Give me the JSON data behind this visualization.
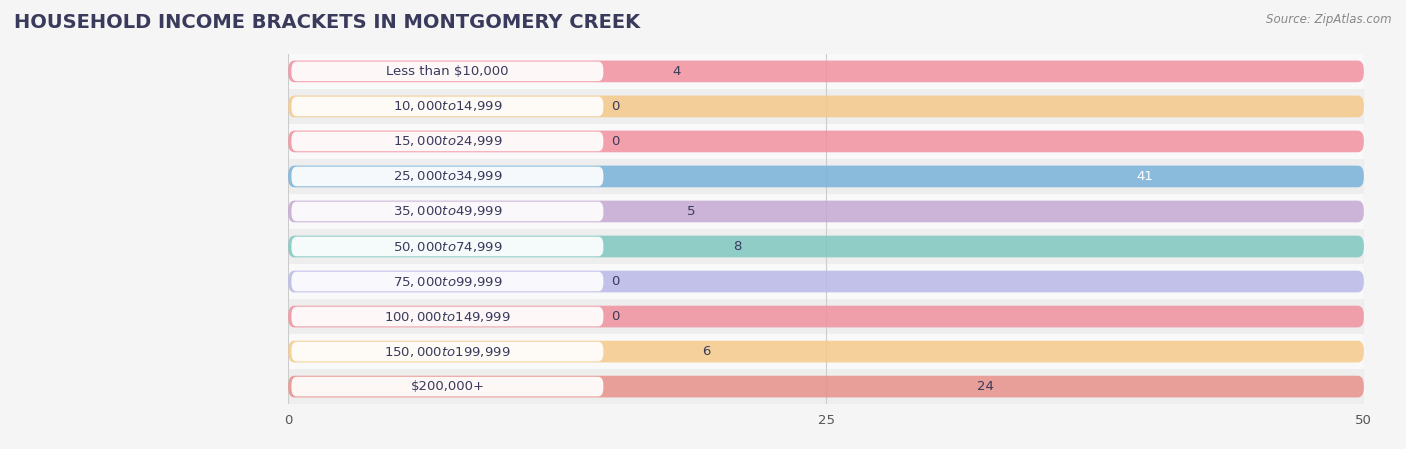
{
  "title": "HOUSEHOLD INCOME BRACKETS IN MONTGOMERY CREEK",
  "source": "Source: ZipAtlas.com",
  "categories": [
    "Less than $10,000",
    "$10,000 to $14,999",
    "$15,000 to $24,999",
    "$25,000 to $34,999",
    "$35,000 to $49,999",
    "$50,000 to $74,999",
    "$75,000 to $99,999",
    "$100,000 to $149,999",
    "$150,000 to $199,999",
    "$200,000+"
  ],
  "values": [
    4,
    0,
    0,
    41,
    5,
    8,
    0,
    0,
    6,
    24
  ],
  "bar_colors": [
    "#f0919f",
    "#f5c98a",
    "#f0919f",
    "#7ab3d9",
    "#c3a8d1",
    "#7ec8c0",
    "#b8b8e8",
    "#f0919f",
    "#f5c98a",
    "#e8908a"
  ],
  "xlim": [
    0,
    50
  ],
  "xticks": [
    0,
    25,
    50
  ],
  "bar_height": 0.62,
  "background_color": "#f5f5f5",
  "row_bg_colors": [
    "#f9f9f9",
    "#eeeeee"
  ],
  "label_fontsize": 9.5,
  "value_fontsize": 9.5,
  "title_fontsize": 14,
  "title_color": "#3a3a5c",
  "label_color": "#3a3a5c"
}
